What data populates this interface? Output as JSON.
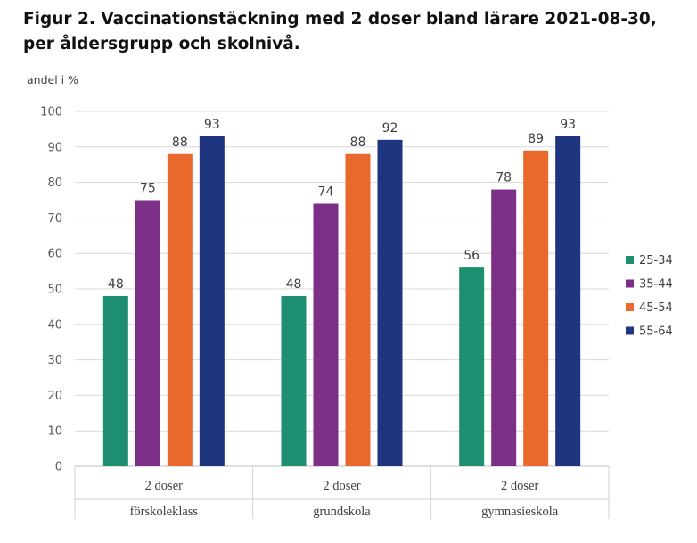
{
  "figure_title": "Figur 2. Vaccinationstäckning med 2 doser bland lärare 2021-08-30, per åldersgrupp och skolnivå.",
  "chart_data": {
    "type": "bar",
    "ylabel": "andel i %",
    "ylim": [
      0,
      100
    ],
    "yticks": [
      0,
      10,
      20,
      30,
      40,
      50,
      60,
      70,
      80,
      90,
      100
    ],
    "grid": true,
    "legend_position": "right",
    "categories": [
      {
        "line1": "2 doser",
        "line2": "förskoleklass"
      },
      {
        "line1": "2 doser",
        "line2": "grundskola"
      },
      {
        "line1": "2 doser",
        "line2": "gymnasieskola"
      }
    ],
    "series": [
      {
        "name": "25-34",
        "color": "#1f8f72",
        "values": [
          48,
          48,
          56
        ]
      },
      {
        "name": "35-44",
        "color": "#7b2f86",
        "values": [
          75,
          74,
          78
        ]
      },
      {
        "name": "45-54",
        "color": "#e8692b",
        "values": [
          88,
          88,
          89
        ]
      },
      {
        "name": "55-64",
        "color": "#1f3580",
        "values": [
          93,
          92,
          93
        ]
      }
    ]
  }
}
